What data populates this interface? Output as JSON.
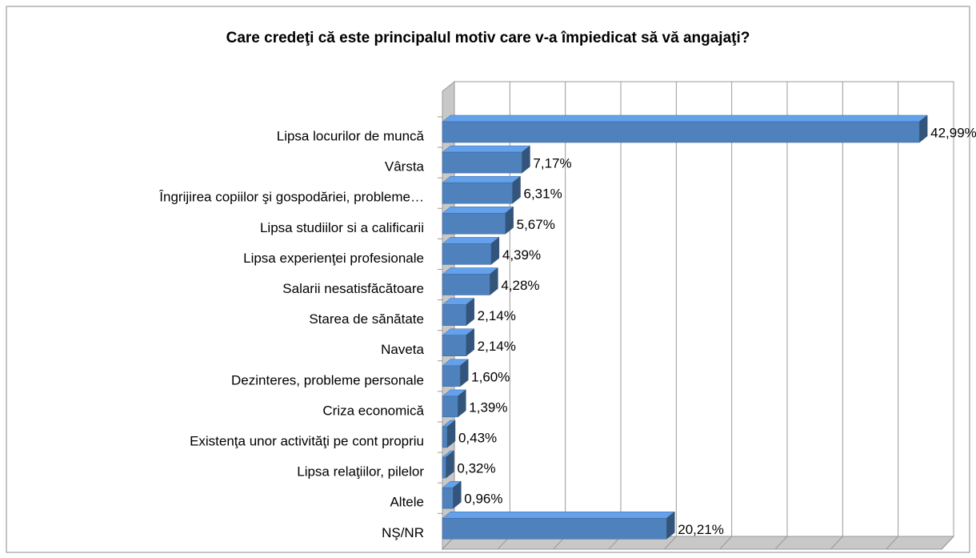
{
  "chart_data": {
    "type": "bar",
    "orientation": "horizontal",
    "three_d": true,
    "title": "Care credeţi că este principalul motiv care v-a împiedicat să vă angajaţi?",
    "categories": [
      "Lipsa locurilor de muncă",
      "Vârsta",
      "Îngrijirea copiilor şi gospodăriei, probleme…",
      "Lipsa studiilor si a calificarii",
      "Lipsa experienţei profesionale",
      "Salarii nesatisfăcătoare",
      "Starea de sănătate",
      "Naveta",
      "Dezinteres, probleme personale",
      "Criza economică",
      "Existenţa unor activităţi pe cont propriu",
      "Lipsa relaţiilor, pilelor",
      "Altele",
      "NŞ/NR"
    ],
    "values": [
      42.99,
      7.17,
      6.31,
      5.67,
      4.39,
      4.28,
      2.14,
      2.14,
      1.6,
      1.39,
      0.43,
      0.32,
      0.96,
      20.21
    ],
    "value_labels": [
      "42,99%",
      "7,17%",
      "6,31%",
      "5,67%",
      "4,39%",
      "4,28%",
      "2,14%",
      "2,14%",
      "1,60%",
      "1,39%",
      "0,43%",
      "0,32%",
      "0,96%",
      "20,21%"
    ],
    "color": "#4f81bd",
    "xlim": [
      0,
      45
    ],
    "xticks": [
      0,
      5,
      10,
      15,
      20,
      25,
      30,
      35,
      40,
      45
    ],
    "grid": true
  }
}
